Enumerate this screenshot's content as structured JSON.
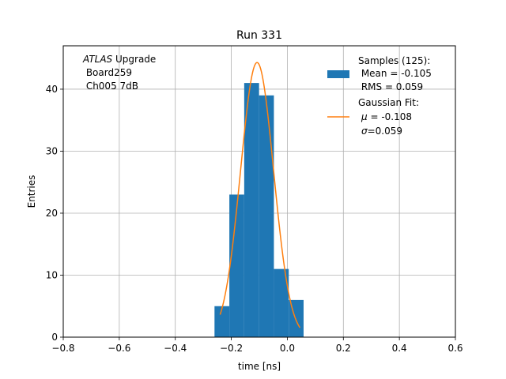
{
  "chart_data": {
    "type": "bar",
    "title": "Run 331",
    "xlabel": "time [ns]",
    "ylabel": "Entries",
    "xlim": [
      -0.8,
      0.6
    ],
    "ylim": [
      0,
      47
    ],
    "grid": true,
    "x_ticks": [
      -0.8,
      -0.6,
      -0.4,
      -0.2,
      0.0,
      0.2,
      0.4,
      0.6
    ],
    "x_tick_labels": [
      "−0.8",
      "−0.6",
      "−0.4",
      "−0.2",
      "0.0",
      "0.2",
      "0.4",
      "0.6"
    ],
    "y_ticks": [
      0,
      10,
      20,
      30,
      40
    ],
    "y_tick_labels": [
      "0",
      "10",
      "20",
      "30",
      "40"
    ],
    "histogram": {
      "name": "Samples (125)",
      "color": "#1f77b4",
      "bin_edges": [
        -0.26,
        -0.207,
        -0.154,
        -0.101,
        -0.048,
        0.005,
        0.058
      ],
      "counts": [
        5,
        23,
        41,
        39,
        11,
        6
      ]
    },
    "fit": {
      "name": "Gaussian Fit",
      "color": "#ff7f0e",
      "amplitude": 44.3,
      "mu": -0.108,
      "sigma": 0.059,
      "x_range": [
        -0.24,
        0.045
      ]
    },
    "annotation": {
      "italic": "ATLAS",
      "line1_rest": " Upgrade",
      "line2": " Board259",
      "line3": " Ch005 7dB"
    },
    "legend": {
      "position": "top-right",
      "hist_line1": "Samples (125):",
      "hist_line2": " Mean = -0.105",
      "hist_line3": " RMS = 0.059",
      "fit_line1": "Gaussian Fit:",
      "fit_line2_sym": "μ",
      "fit_line2_val": " = -0.108",
      "fit_line3_sym": "σ",
      "fit_line3_val": "=0.059"
    }
  }
}
